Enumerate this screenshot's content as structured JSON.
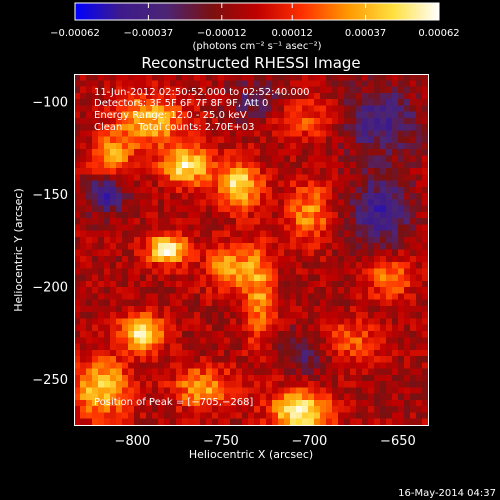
{
  "chart_data": {
    "type": "heatmap",
    "title": "Reconstructed RHESSI Image",
    "xlabel": "Heliocentric X (arcsec)",
    "ylabel": "Heliocentric Y (arcsec)",
    "xlim": [
      -833,
      -633
    ],
    "ylim": [
      -275,
      -85
    ],
    "xticks": [
      -800,
      -750,
      -700,
      -650
    ],
    "xtick_labels": [
      "−800",
      "−750",
      "−700",
      "−650"
    ],
    "yticks": [
      -100,
      -150,
      -200,
      -250
    ],
    "ytick_labels": [
      "−100",
      "−150",
      "−200",
      "−250"
    ],
    "colorbar": {
      "range": [
        -0.00062,
        0.00062
      ],
      "ticks": [
        -0.00062,
        -0.00037,
        -0.00012,
        0.00012,
        0.00037,
        0.00062
      ],
      "tick_labels": [
        "−0.00062",
        "−0.00037",
        "−0.00012",
        "0.00012",
        "0.00037",
        "0.00062"
      ],
      "unit_label": "(photons cm⁻² s⁻¹ asec⁻²)",
      "stops": [
        "#0000ff",
        "#3d1a8c",
        "#4b2575",
        "#7a1010",
        "#c00000",
        "#ff3000",
        "#ff9800",
        "#ffe040",
        "#ffffff"
      ]
    },
    "annotations": [
      "11-Jun-2012 02:50:52.000 to 02:52:40.000",
      "Detectors: 3F 5F 6F 7F 8F 9F, Att 0",
      "Energy Range: 12.0 - 25.0 keV",
      "Clean     Total counts: 2.70E+03",
      "Position of Peak = [−705,−268]"
    ],
    "peak": {
      "x": -705,
      "y": -268
    },
    "blobs": [
      {
        "x": -790,
        "y": -110,
        "amp": 0.00045,
        "sx": 14,
        "sy": 10
      },
      {
        "x": -770,
        "y": -135,
        "amp": 0.00058,
        "sx": 10,
        "sy": 7
      },
      {
        "x": -740,
        "y": -145,
        "amp": 0.00056,
        "sx": 9,
        "sy": 9
      },
      {
        "x": -812,
        "y": -130,
        "amp": 0.00042,
        "sx": 8,
        "sy": 8
      },
      {
        "x": -780,
        "y": -180,
        "amp": 0.00062,
        "sx": 8,
        "sy": 6
      },
      {
        "x": -745,
        "y": -190,
        "amp": 0.0004,
        "sx": 10,
        "sy": 9
      },
      {
        "x": -795,
        "y": -225,
        "amp": 0.00058,
        "sx": 9,
        "sy": 7
      },
      {
        "x": -818,
        "y": -255,
        "amp": 0.00048,
        "sx": 12,
        "sy": 12
      },
      {
        "x": -705,
        "y": -268,
        "amp": 0.00062,
        "sx": 12,
        "sy": 8
      },
      {
        "x": -760,
        "y": -255,
        "amp": 0.0004,
        "sx": 12,
        "sy": 8
      },
      {
        "x": -680,
        "y": -230,
        "amp": 0.0003,
        "sx": 14,
        "sy": 8
      },
      {
        "x": -700,
        "y": -160,
        "amp": 0.00035,
        "sx": 9,
        "sy": 12
      },
      {
        "x": -655,
        "y": -195,
        "amp": 0.00034,
        "sx": 10,
        "sy": 8
      },
      {
        "x": -728,
        "y": -205,
        "amp": 0.00036,
        "sx": 6,
        "sy": 20
      },
      {
        "x": -705,
        "y": -110,
        "amp": 0.00025,
        "sx": 14,
        "sy": 8
      },
      {
        "x": -660,
        "y": -110,
        "amp": -0.00035,
        "sx": 14,
        "sy": 12
      },
      {
        "x": -815,
        "y": -150,
        "amp": -0.00045,
        "sx": 7,
        "sy": 7
      },
      {
        "x": -660,
        "y": -160,
        "amp": -0.00035,
        "sx": 12,
        "sy": 14
      },
      {
        "x": -700,
        "y": -235,
        "amp": -0.0003,
        "sx": 10,
        "sy": 8
      },
      {
        "x": -730,
        "y": -100,
        "amp": -0.00025,
        "sx": 10,
        "sy": 8
      }
    ]
  },
  "footer": {
    "timestamp": "16-May-2014 04:37"
  }
}
